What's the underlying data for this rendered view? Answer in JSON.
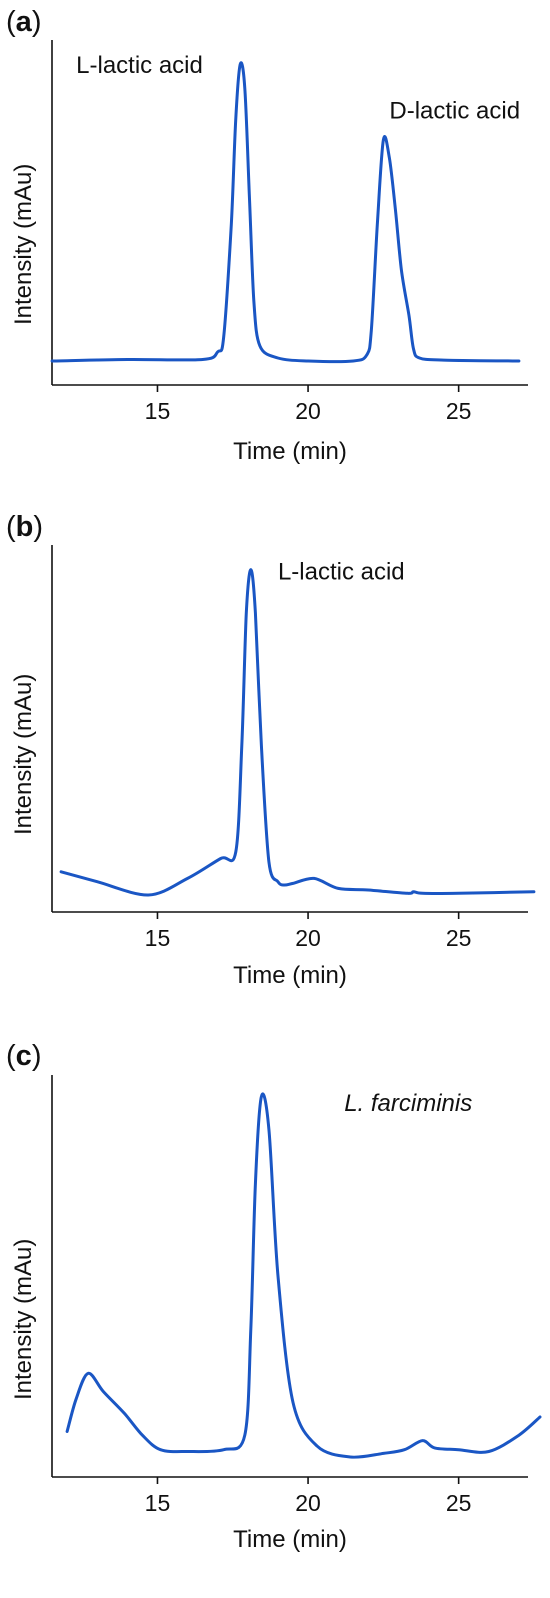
{
  "colors": {
    "series": "#1a56c4",
    "axis": "#111111"
  },
  "chart_data": [
    {
      "panel_label": "a",
      "type": "line",
      "title": "",
      "xlabel": "Time (min)",
      "ylabel": "Intensity (mAu)",
      "xlim": [
        11,
        28
      ],
      "ylim": [
        0,
        1
      ],
      "xticks": [
        15,
        20,
        25
      ],
      "grid": false,
      "annotations": [
        {
          "text": "L-lactic acid",
          "x": 12.3,
          "y": 0.95,
          "italic": false
        },
        {
          "text": "D-lactic acid",
          "x": 22.7,
          "y": 0.8,
          "italic": false
        }
      ],
      "series": [
        {
          "x": [
            11.5,
            14.0,
            16.5,
            17.0,
            17.2,
            17.45,
            17.6,
            17.75,
            17.9,
            18.05,
            18.2,
            18.4,
            19.0,
            20.0,
            21.5,
            21.95,
            22.1,
            22.3,
            22.5,
            22.7,
            22.9,
            23.1,
            23.35,
            23.5,
            23.7,
            24.5,
            27.0
          ],
          "y": [
            0.0,
            0.005,
            0.005,
            0.03,
            0.08,
            0.45,
            0.8,
            0.98,
            0.9,
            0.55,
            0.2,
            0.05,
            0.01,
            0.0,
            0.0,
            0.02,
            0.1,
            0.45,
            0.73,
            0.67,
            0.5,
            0.3,
            0.15,
            0.04,
            0.01,
            0.003,
            0.0
          ]
        }
      ]
    },
    {
      "panel_label": "b",
      "type": "line",
      "title": "",
      "xlabel": "Time (min)",
      "ylabel": "Intensity (mAu)",
      "xlim": [
        11,
        28
      ],
      "ylim": [
        0,
        1
      ],
      "xticks": [
        15,
        20,
        25
      ],
      "grid": false,
      "annotations": [
        {
          "text": "L-lactic acid",
          "x": 19.0,
          "y": 0.95,
          "italic": false
        }
      ],
      "series": [
        {
          "x": [
            11.8,
            13.0,
            14.7,
            16.0,
            17.1,
            17.6,
            17.8,
            17.95,
            18.1,
            18.25,
            18.45,
            18.7,
            19.0,
            19.2,
            19.5,
            20.2,
            21.0,
            22.0,
            23.3,
            23.5,
            23.8,
            25.0,
            27.5
          ],
          "y": [
            0.07,
            0.04,
            0.0,
            0.05,
            0.11,
            0.13,
            0.45,
            0.85,
            0.98,
            0.85,
            0.45,
            0.1,
            0.04,
            0.03,
            0.035,
            0.05,
            0.02,
            0.015,
            0.005,
            0.01,
            0.005,
            0.005,
            0.01
          ]
        }
      ]
    },
    {
      "panel_label": "c",
      "type": "line",
      "title": "",
      "xlabel": "Time (min)",
      "ylabel": "Intensity (mAu)",
      "xlim": [
        11,
        28
      ],
      "ylim": [
        0,
        1
      ],
      "xticks": [
        15,
        20,
        25
      ],
      "grid": false,
      "annotations": [
        {
          "text": "L. farciminis",
          "x": 21.2,
          "y": 0.95,
          "italic": true
        }
      ],
      "series": [
        {
          "x": [
            12.0,
            12.3,
            12.7,
            13.2,
            13.9,
            14.5,
            15.1,
            16.0,
            17.2,
            17.9,
            18.1,
            18.25,
            18.45,
            18.7,
            19.0,
            19.5,
            20.3,
            21.4,
            22.5,
            23.2,
            23.8,
            24.2,
            25.0,
            26.0,
            27.0,
            27.7
          ],
          "y": [
            0.07,
            0.16,
            0.23,
            0.18,
            0.12,
            0.06,
            0.02,
            0.015,
            0.02,
            0.06,
            0.35,
            0.75,
            0.99,
            0.9,
            0.5,
            0.15,
            0.03,
            0.0,
            0.01,
            0.02,
            0.045,
            0.025,
            0.02,
            0.015,
            0.06,
            0.11
          ]
        }
      ]
    }
  ]
}
